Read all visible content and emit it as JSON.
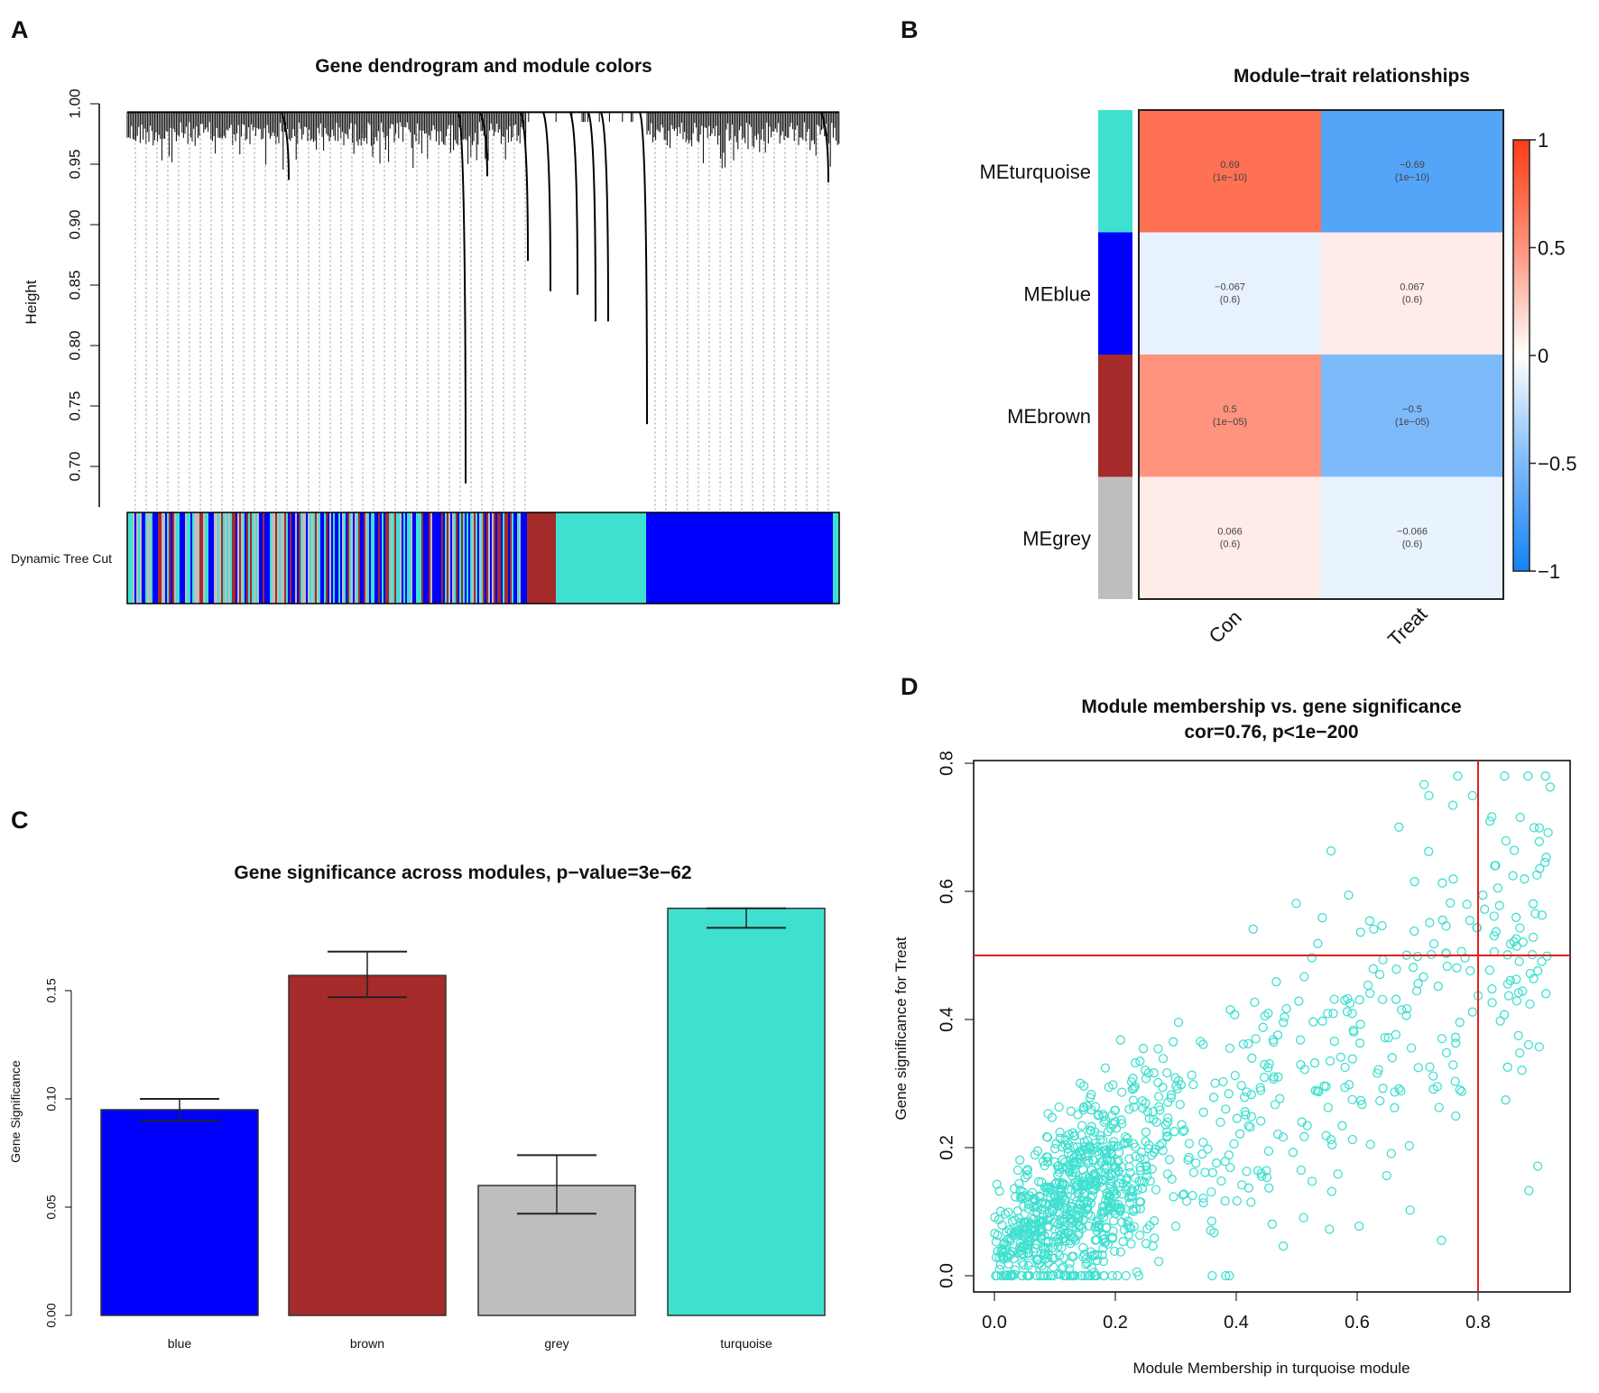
{
  "panels": {
    "a": "A",
    "b": "B",
    "c": "C",
    "d": "D"
  },
  "chart_data": [
    {
      "type": "dendrogram",
      "title": "Gene dendrogram and module colors",
      "ylabel": "Height",
      "yticks": [
        "1.00",
        "0.95",
        "0.90",
        "0.85",
        "0.80",
        "0.75",
        "0.70"
      ],
      "ylim": [
        0.67,
        1.0
      ],
      "color_row_label": "Dynamic Tree Cut",
      "module_colors": {
        "turquoise": "#40E0D0",
        "blue": "#0000FF",
        "brown": "#A52A2A",
        "grey": "#BEBEBE"
      }
    },
    {
      "type": "heatmap",
      "title": "Module−trait relationships",
      "rows": [
        "MEturquoise",
        "MEblue",
        "MEbrown",
        "MEgrey"
      ],
      "row_colors": [
        "#40E0D0",
        "#0000FF",
        "#A52A2A",
        "#BEBEBE"
      ],
      "columns": [
        "Con",
        "Treat"
      ],
      "values": [
        [
          0.69,
          -0.69
        ],
        [
          -0.067,
          0.067
        ],
        [
          0.5,
          -0.5
        ],
        [
          0.066,
          -0.066
        ]
      ],
      "labels": [
        [
          [
            "0.69",
            "(1e−10)"
          ],
          [
            "−0.69",
            "(1e−10)"
          ]
        ],
        [
          [
            "−0.067",
            "(0.6)"
          ],
          [
            "0.067",
            "(0.6)"
          ]
        ],
        [
          [
            "0.5",
            "(1e−05)"
          ],
          [
            "−0.5",
            "(1e−05)"
          ]
        ],
        [
          [
            "0.066",
            "(0.6)"
          ],
          [
            "−0.066",
            "(0.6)"
          ]
        ]
      ],
      "colorbar_ticks": [
        "1",
        "0.5",
        "0",
        "−0.5",
        "−1"
      ],
      "colorbar_range": [
        -1,
        1
      ]
    },
    {
      "type": "bar",
      "title": "Gene significance across modules, p−value=3e−62",
      "xlabel": "",
      "ylabel": "Gene Significance",
      "categories": [
        "blue",
        "brown",
        "grey",
        "turquoise"
      ],
      "values": [
        0.095,
        0.157,
        0.06,
        0.188
      ],
      "error_low": [
        0.09,
        0.147,
        0.047,
        0.179
      ],
      "error_high": [
        0.1,
        0.168,
        0.074,
        0.188
      ],
      "colors": [
        "#0000FF",
        "#A52A2A",
        "#BEBEBE",
        "#40E0D0"
      ],
      "yticks": [
        "0.00",
        "0.05",
        "0.10",
        "0.15"
      ],
      "ylim": [
        0,
        0.19
      ]
    },
    {
      "type": "scatter",
      "title": "Module membership vs. gene significance",
      "subtitle": "cor=0.76, p<1e−200",
      "xlabel": "Module Membership in turquoise module",
      "ylabel": "Gene significance for  Treat",
      "xticks": [
        "0.0",
        "0.2",
        "0.4",
        "0.6",
        "0.8"
      ],
      "yticks": [
        "0.0",
        "0.2",
        "0.4",
        "0.6",
        "0.8"
      ],
      "xlim": [
        -0.03,
        0.93
      ],
      "ylim": [
        -0.02,
        0.81
      ],
      "cor": 0.76,
      "n_points": 1100,
      "point_color": "#40E0D0",
      "reference_lines": {
        "x": 0.8,
        "y": 0.5,
        "color": "#E02020"
      }
    }
  ]
}
